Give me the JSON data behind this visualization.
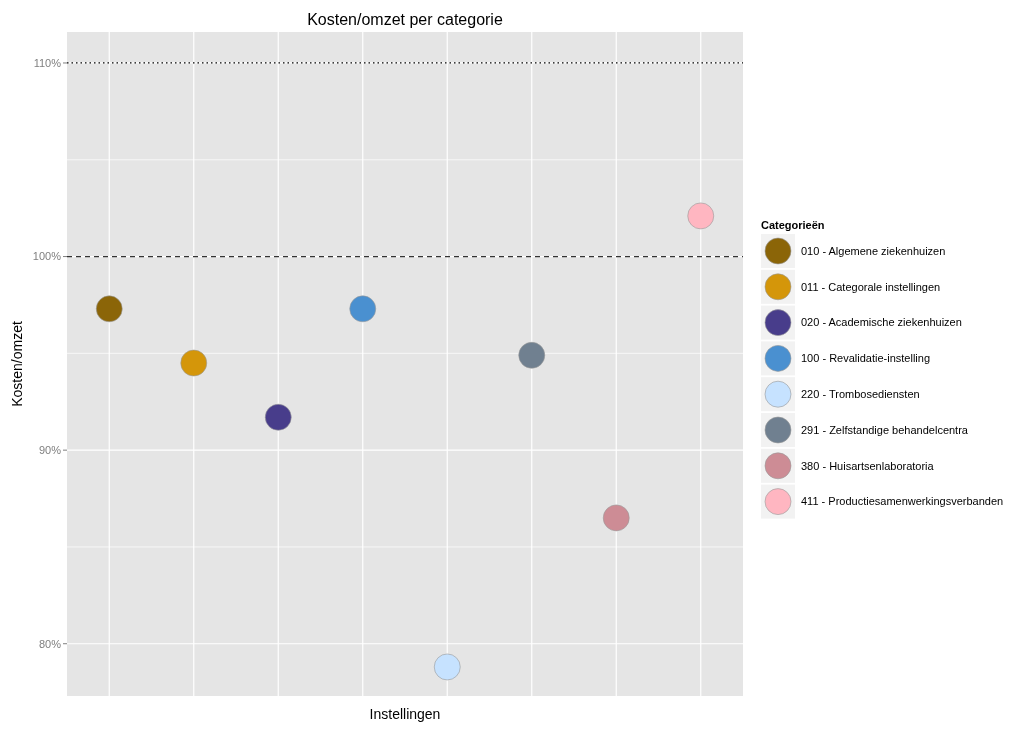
{
  "chart_data": {
    "type": "scatter",
    "title": "Kosten/omzet per categorie",
    "xlabel": "Instellingen",
    "ylabel": "Kosten/omzet",
    "legend_title": "Categorieën",
    "categories": [
      null,
      null,
      null,
      null,
      null,
      null,
      null,
      null
    ],
    "ylim": [
      77.3,
      111.6
    ],
    "yticks": [
      {
        "value": 80,
        "label": "80%"
      },
      {
        "value": 85,
        "label": null
      },
      {
        "value": 90,
        "label": "90%"
      },
      {
        "value": 95,
        "label": null
      },
      {
        "value": 100,
        "label": "100%"
      },
      {
        "value": 105,
        "label": null
      },
      {
        "value": 110,
        "label": "110%"
      }
    ],
    "grid": true,
    "legend": "right",
    "marker": "circle",
    "tick_labels": "y",
    "ref_lines": [
      {
        "axis": "y",
        "value": 100,
        "line_style": "dashed",
        "color": "#333333"
      },
      {
        "axis": "y",
        "value": 110,
        "line_style": "dotted",
        "color": "#000000"
      }
    ],
    "series": [
      {
        "name": "010 - Algemene ziekenhuizen",
        "color": "#8b6508",
        "values": [
          97.3,
          null,
          null,
          null,
          null,
          null,
          null,
          null
        ]
      },
      {
        "name": "011 - Categorale instellingen",
        "color": "#d4960a",
        "values": [
          null,
          94.5,
          null,
          null,
          null,
          null,
          null,
          null
        ]
      },
      {
        "name": "020 - Academische ziekenhuizen",
        "color": "#483d8b",
        "values": [
          null,
          null,
          91.7,
          null,
          null,
          null,
          null,
          null
        ]
      },
      {
        "name": "100 - Revalidatie-instelling",
        "color": "#4a90d0",
        "values": [
          null,
          null,
          null,
          97.3,
          null,
          null,
          null,
          null
        ]
      },
      {
        "name": "220 - Trombosediensten",
        "color": "#c6e2ff",
        "values": [
          null,
          null,
          null,
          null,
          78.8,
          null,
          null,
          null
        ]
      },
      {
        "name": "291 - Zelfstandige behandelcentra",
        "color": "#708090",
        "values": [
          null,
          null,
          null,
          null,
          null,
          94.9,
          null,
          null
        ]
      },
      {
        "name": "380 - Huisartsenlaboratoria",
        "color": "#cd8c95",
        "values": [
          null,
          null,
          null,
          null,
          null,
          null,
          86.5,
          null
        ]
      },
      {
        "name": "411 - Productiesamenwerkingsverbanden",
        "color": "#ffb6c1",
        "values": [
          null,
          null,
          null,
          null,
          null,
          null,
          null,
          102.1
        ]
      }
    ]
  }
}
